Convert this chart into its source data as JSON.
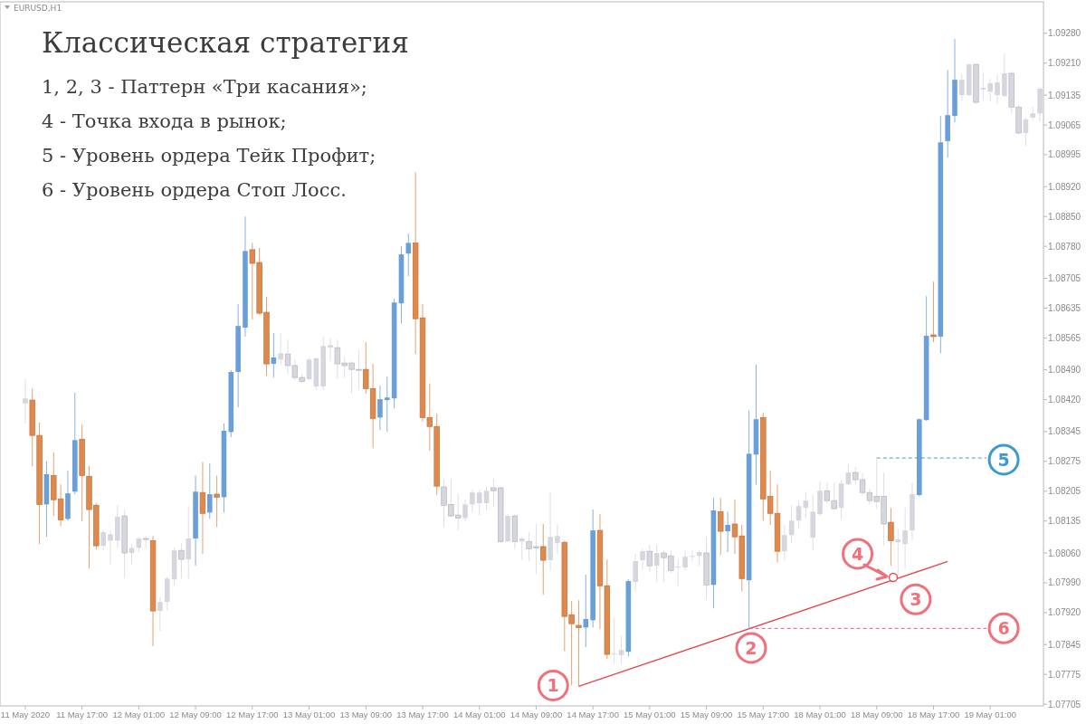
{
  "chart_data": {
    "type": "candlestick",
    "title": "Классическая стратегия",
    "annotations": [
      "EURUSD,H1",
      "1, 2, 3 - Паттерн «Три касания»;",
      "4 - Точка входа в рынок;",
      "5 - Уровень ордера Тейк Профит;",
      "6 - Уровень ордера Стоп Лосс.",
      {
        "text": "1",
        "y": 1.07749
      },
      {
        "text": "2",
        "y": 1.07837
      },
      {
        "text": "3",
        "y": 1.07951
      },
      {
        "text": "4",
        "y": 1.08058
      },
      {
        "text": "5",
        "y": 1.08279
      },
      {
        "text": "6",
        "y": 1.07883
      }
    ],
    "categories": [
      "11 May 2020",
      null,
      null,
      null,
      null,
      null,
      null,
      null,
      "11 May 17:00",
      null,
      null,
      null,
      null,
      null,
      null,
      null,
      "12 May 01:00",
      null,
      null,
      null,
      null,
      null,
      null,
      null,
      "12 May 09:00",
      null,
      null,
      null,
      null,
      null,
      null,
      null,
      "12 May 17:00",
      null,
      null,
      null,
      null,
      null,
      null,
      null,
      "13 May 01:00",
      null,
      null,
      null,
      null,
      null,
      null,
      null,
      "13 May 09:00",
      null,
      null,
      null,
      null,
      null,
      null,
      null,
      "13 May 17:00",
      null,
      null,
      null,
      null,
      null,
      null,
      null,
      "14 May 01:00",
      null,
      null,
      null,
      null,
      null,
      null,
      null,
      "14 May 09:00",
      null,
      null,
      null,
      null,
      null,
      null,
      null,
      "14 May 17:00",
      null,
      null,
      null,
      null,
      null,
      null,
      null,
      "15 May 01:00",
      null,
      null,
      null,
      null,
      null,
      null,
      null,
      "15 May 09:00",
      null,
      null,
      null,
      null,
      null,
      null,
      null,
      "15 May 17:00",
      null,
      null,
      null,
      null,
      null,
      null,
      null,
      "18 May 01:00",
      null,
      null,
      null,
      null,
      null,
      null,
      null,
      "18 May 09:00",
      null,
      null,
      null,
      null,
      null,
      null,
      null,
      "18 May 17:00",
      null,
      null,
      null,
      null,
      null,
      null,
      null,
      "19 May 01:00",
      null,
      null,
      null,
      null,
      null,
      null,
      null
    ],
    "ohlc": [
      [
        1.08411,
        1.08468,
        1.08364,
        1.08423
      ],
      [
        1.08419,
        1.08446,
        1.08264,
        1.08336
      ],
      [
        1.08336,
        1.08366,
        1.08081,
        1.08174
      ],
      [
        1.08174,
        1.08276,
        1.08098,
        1.08245
      ],
      [
        1.08242,
        1.08296,
        1.08147,
        1.08185
      ],
      [
        1.08187,
        1.08221,
        1.08123,
        1.08138
      ],
      [
        1.0814,
        1.08253,
        1.08136,
        1.082
      ],
      [
        1.08204,
        1.08436,
        1.08198,
        1.08325
      ],
      [
        1.08327,
        1.08361,
        1.08134,
        1.08242
      ],
      [
        1.0824,
        1.08264,
        1.08024,
        1.08162
      ],
      [
        1.08172,
        1.08177,
        1.08068,
        1.08077
      ],
      [
        1.08077,
        1.08115,
        1.08066,
        1.08109
      ],
      [
        1.08089,
        1.08113,
        1.08034,
        1.08104
      ],
      [
        1.08089,
        1.08172,
        1.08072,
        1.08145
      ],
      [
        1.08147,
        1.08162,
        1.08002,
        1.0806
      ],
      [
        1.0806,
        1.08081,
        1.08034,
        1.08072
      ],
      [
        1.08072,
        1.08098,
        1.08062,
        1.08094
      ],
      [
        1.08094,
        1.081,
        1.08072,
        1.08092
      ],
      [
        1.08089,
        1.081,
        1.07841,
        1.07924
      ],
      [
        1.07924,
        1.07956,
        1.07877,
        1.07945
      ],
      [
        1.07945,
        1.08004,
        1.07926,
        1.08
      ],
      [
        1.07998,
        1.08072,
        1.07983,
        1.08066
      ],
      [
        1.08066,
        1.08083,
        1.08,
        1.08045
      ],
      [
        1.08045,
        1.0817,
        1.08,
        1.08094
      ],
      [
        1.08094,
        1.08242,
        1.0803,
        1.08204
      ],
      [
        1.08202,
        1.08274,
        1.08058,
        1.08153
      ],
      [
        1.08155,
        1.0827,
        1.0814,
        1.08198
      ],
      [
        1.08198,
        1.08242,
        1.08121,
        1.08191
      ],
      [
        1.08191,
        1.08364,
        1.08155,
        1.08347
      ],
      [
        1.08344,
        1.08489,
        1.08332,
        1.08485
      ],
      [
        1.08485,
        1.08644,
        1.08402,
        1.08593
      ],
      [
        1.08589,
        1.0885,
        1.08568,
        1.08769
      ],
      [
        1.08772,
        1.08788,
        1.08608,
        1.0874
      ],
      [
        1.08742,
        1.08776,
        1.08619,
        1.08623
      ],
      [
        1.08625,
        1.08661,
        1.08476,
        1.08504
      ],
      [
        1.08504,
        1.08576,
        1.08472,
        1.08519
      ],
      [
        1.08514,
        1.08576,
        1.08502,
        1.08529
      ],
      [
        1.08527,
        1.08561,
        1.0848,
        1.085
      ],
      [
        1.085,
        1.08514,
        1.08466,
        1.08472
      ],
      [
        1.08472,
        1.0848,
        1.08459,
        1.08463
      ],
      [
        1.08468,
        1.08517,
        1.08466,
        1.08514
      ],
      [
        1.08451,
        1.08519,
        1.08442,
        1.08517
      ],
      [
        1.08451,
        1.08568,
        1.08442,
        1.08546
      ],
      [
        1.08542,
        1.08565,
        1.0851,
        1.08548
      ],
      [
        1.08542,
        1.08561,
        1.08468,
        1.08504
      ],
      [
        1.08506,
        1.08519,
        1.08472,
        1.085
      ],
      [
        1.08506,
        1.0851,
        1.08434,
        1.08491
      ],
      [
        1.08491,
        1.08536,
        1.08444,
        1.08489
      ],
      [
        1.08491,
        1.08555,
        1.08434,
        1.08446
      ],
      [
        1.08446,
        1.08504,
        1.08306,
        1.08376
      ],
      [
        1.08378,
        1.08453,
        1.08349,
        1.08421
      ],
      [
        1.08419,
        1.08474,
        1.08344,
        1.08425
      ],
      [
        1.08423,
        1.08657,
        1.084,
        1.08648
      ],
      [
        1.08646,
        1.0878,
        1.08599,
        1.08761
      ],
      [
        1.08763,
        1.0881,
        1.0871,
        1.08788
      ],
      [
        1.08788,
        1.08954,
        1.08527,
        1.0861
      ],
      [
        1.08612,
        1.08644,
        1.08368,
        1.08378
      ],
      [
        1.08378,
        1.08457,
        1.083,
        1.08357
      ],
      [
        1.08357,
        1.08387,
        1.08196,
        1.08217
      ],
      [
        1.08215,
        1.08232,
        1.08121,
        1.08172
      ],
      [
        1.08174,
        1.08234,
        1.08145,
        1.08147
      ],
      [
        1.08149,
        1.082,
        1.08113,
        1.08142
      ],
      [
        1.08142,
        1.08185,
        1.08134,
        1.08174
      ],
      [
        1.08174,
        1.08208,
        1.08155,
        1.08202
      ],
      [
        1.08177,
        1.08208,
        1.08149,
        1.08202
      ],
      [
        1.08177,
        1.08217,
        1.0816,
        1.08206
      ],
      [
        1.08213,
        1.08234,
        1.08168,
        1.08206
      ],
      [
        1.08213,
        1.08216,
        1.08083,
        1.08087
      ],
      [
        1.08087,
        1.08151,
        1.08085,
        1.08147
      ],
      [
        1.08147,
        1.08151,
        1.08068,
        1.08087
      ],
      [
        1.08087,
        1.08098,
        1.08045,
        1.08094
      ],
      [
        1.08087,
        1.08109,
        1.08041,
        1.0807
      ],
      [
        1.08075,
        1.08128,
        1.08011,
        1.08072
      ],
      [
        1.08075,
        1.08128,
        1.07962,
        1.08043
      ],
      [
        1.08043,
        1.08202,
        1.08019,
        1.08098
      ],
      [
        1.08083,
        1.08128,
        1.08058,
        1.081
      ],
      [
        1.08085,
        1.08089,
        1.0783,
        1.07911
      ],
      [
        1.07915,
        1.07947,
        1.07749,
        1.07894
      ],
      [
        1.0789,
        1.07949,
        1.07747,
        1.07885
      ],
      [
        1.07885,
        1.08009,
        1.07839,
        1.07905
      ],
      [
        1.07902,
        1.08162,
        1.07885,
        1.08113
      ],
      [
        1.08113,
        1.08151,
        1.07881,
        1.07983
      ],
      [
        1.07983,
        1.08045,
        1.07811,
        1.07822
      ],
      [
        1.07822,
        1.07907,
        1.078,
        1.07824
      ],
      [
        1.0782,
        1.07866,
        1.078,
        1.07832
      ],
      [
        1.07828,
        1.07998,
        1.07817,
        1.07994
      ],
      [
        1.07992,
        1.08058,
        1.0797,
        1.08041
      ],
      [
        1.08043,
        1.0807,
        1.08019,
        1.08064
      ],
      [
        1.08064,
        1.08079,
        1.08015,
        1.0803
      ],
      [
        1.0803,
        1.08079,
        1.07992,
        1.0806
      ],
      [
        1.0806,
        1.08066,
        1.07992,
        1.08049
      ],
      [
        1.08053,
        1.08066,
        1.08013,
        1.08019
      ],
      [
        1.08026,
        1.08047,
        1.07983,
        1.08028
      ],
      [
        1.08026,
        1.08066,
        1.08019,
        1.08051
      ],
      [
        1.08051,
        1.08066,
        1.08041,
        1.08053
      ],
      [
        1.08053,
        1.08066,
        1.0803,
        1.08062
      ],
      [
        1.0806,
        1.08098,
        1.07951,
        1.07985
      ],
      [
        1.07985,
        1.08189,
        1.0793,
        1.0816
      ],
      [
        1.08157,
        1.08189,
        1.08055,
        1.08111
      ],
      [
        1.08111,
        1.08157,
        1.08062,
        1.08126
      ],
      [
        1.08128,
        1.08185,
        1.08058,
        1.08098
      ],
      [
        1.081,
        1.08126,
        1.0797,
        1.08
      ],
      [
        1.07996,
        1.08395,
        1.07883,
        1.08293
      ],
      [
        1.08291,
        1.08502,
        1.08221,
        1.08374
      ],
      [
        1.08378,
        1.08389,
        1.08136,
        1.08187
      ],
      [
        1.08193,
        1.08253,
        1.08126,
        1.08153
      ],
      [
        1.08153,
        1.08221,
        1.08038,
        1.08064
      ],
      [
        1.08064,
        1.08126,
        1.08043,
        1.08102
      ],
      [
        1.08102,
        1.08172,
        1.08083,
        1.08136
      ],
      [
        1.08136,
        1.08183,
        1.08117,
        1.0817
      ],
      [
        1.08166,
        1.08204,
        1.08142,
        1.08183
      ],
      [
        1.08096,
        1.08196,
        1.08066,
        1.08157
      ],
      [
        1.08151,
        1.08228,
        1.08147,
        1.08206
      ],
      [
        1.08206,
        1.08225,
        1.08177,
        1.08183
      ],
      [
        1.08183,
        1.08225,
        1.08162,
        1.08164
      ],
      [
        1.08166,
        1.08232,
        1.0814,
        1.08223
      ],
      [
        1.08221,
        1.08268,
        1.08219,
        1.08249
      ],
      [
        1.08249,
        1.08262,
        1.08221,
        1.08232
      ],
      [
        1.08232,
        1.08247,
        1.08196,
        1.08202
      ],
      [
        1.08202,
        1.08211,
        1.08174,
        1.08183
      ],
      [
        1.08193,
        1.08283,
        1.08164,
        1.08181
      ],
      [
        1.08193,
        1.08249,
        1.08077,
        1.08128
      ],
      [
        1.08132,
        1.08166,
        1.0803,
        1.08089
      ],
      [
        1.08085,
        1.08117,
        1.08002,
        1.08092
      ],
      [
        1.08081,
        1.08166,
        1.08024,
        1.08113
      ],
      [
        1.08113,
        1.08225,
        1.08089,
        1.08198
      ],
      [
        1.08196,
        1.08376,
        1.08193,
        1.08374
      ],
      [
        1.08372,
        1.08663,
        1.0837,
        1.0857
      ],
      [
        1.08572,
        1.08697,
        1.08555,
        1.08568
      ],
      [
        1.08568,
        1.09086,
        1.08529,
        1.09024
      ],
      [
        1.09027,
        1.09194,
        1.08988,
        1.09088
      ],
      [
        1.09086,
        1.09267,
        1.09071,
        1.09171
      ],
      [
        1.09135,
        1.09184,
        1.09122,
        1.09171
      ],
      [
        1.09135,
        1.09209,
        1.09133,
        1.09207
      ],
      [
        1.09207,
        1.09209,
        1.09114,
        1.09118
      ],
      [
        1.09148,
        1.09186,
        1.09124,
        1.09152
      ],
      [
        1.09143,
        1.09173,
        1.0912,
        1.09163
      ],
      [
        1.09135,
        1.09184,
        1.09114,
        1.09165
      ],
      [
        1.09133,
        1.09233,
        1.09131,
        1.09186
      ],
      [
        1.09186,
        1.0919,
        1.09092,
        1.09107
      ],
      [
        1.09107,
        1.09112,
        1.09041,
        1.09046
      ],
      [
        1.09046,
        1.09082,
        1.09016,
        1.09078
      ],
      [
        1.09082,
        1.09109,
        1.09075,
        1.09092
      ],
      [
        1.09092,
        1.09154,
        1.09073,
        1.0915
      ]
    ],
    "colors": [
      "#d6d7de",
      "#e0894d",
      "#e0894d",
      "#6b9fd8",
      "#e0894d",
      "#e0894d",
      "#6b9fd8",
      "#6b9fd8",
      "#e0894d",
      "#e0894d",
      "#e0894d",
      "#d6d7de",
      "#d6d7de",
      "#d6d7de",
      "#d6d7de",
      "#d6d7de",
      "#d6d7de",
      "#d6d7de",
      "#e0894d",
      "#d6d7de",
      "#d6d7de",
      "#d6d7de",
      "#d6d7de",
      "#d6d7de",
      "#6b9fd8",
      "#e0894d",
      "#6b9fd8",
      "#e0894d",
      "#6b9fd8",
      "#6b9fd8",
      "#6b9fd8",
      "#6b9fd8",
      "#e0894d",
      "#e0894d",
      "#e0894d",
      "#6b9fd8",
      "#d6d7de",
      "#d6d7de",
      "#d6d7de",
      "#d6d7de",
      "#d6d7de",
      "#d6d7de",
      "#d6d7de",
      "#d6d7de",
      "#d6d7de",
      "#d6d7de",
      "#d6d7de",
      "#d6d7de",
      "#e0894d",
      "#e0894d",
      "#6b9fd8",
      "#6b9fd8",
      "#6b9fd8",
      "#6b9fd8",
      "#6b9fd8",
      "#e0894d",
      "#e0894d",
      "#e0894d",
      "#e0894d",
      "#d6d7de",
      "#d6d7de",
      "#d6d7de",
      "#d6d7de",
      "#d6d7de",
      "#d6d7de",
      "#d6d7de",
      "#d6d7de",
      "#d6d7de",
      "#d6d7de",
      "#d6d7de",
      "#d6d7de",
      "#d6d7de",
      "#d6d7de",
      "#e0894d",
      "#d6d7de",
      "#d6d7de",
      "#e0894d",
      "#e0894d",
      "#e0894d",
      "#6b9fd8",
      "#6b9fd8",
      "#e0894d",
      "#e0894d",
      "#d6d7de",
      "#d6d7de",
      "#6b9fd8",
      "#d6d7de",
      "#d6d7de",
      "#d6d7de",
      "#d6d7de",
      "#d6d7de",
      "#d6d7de",
      "#d6d7de",
      "#d6d7de",
      "#d6d7de",
      "#d6d7de",
      "#d6d7de",
      "#6b9fd8",
      "#e0894d",
      "#6b9fd8",
      "#e0894d",
      "#e0894d",
      "#6b9fd8",
      "#6b9fd8",
      "#e0894d",
      "#e0894d",
      "#e0894d",
      "#d6d7de",
      "#d6d7de",
      "#d6d7de",
      "#d6d7de",
      "#d6d7de",
      "#d6d7de",
      "#d6d7de",
      "#d6d7de",
      "#d6d7de",
      "#d6d7de",
      "#d6d7de",
      "#d6d7de",
      "#d6d7de",
      "#d6d7de",
      "#d6d7de",
      "#e0894d",
      "#d6d7de",
      "#d6d7de",
      "#d6d7de",
      "#6b9fd8",
      "#6b9fd8",
      "#e0894d",
      "#6b9fd8",
      "#6b9fd8",
      "#6b9fd8",
      "#d6d7de",
      "#d6d7de",
      "#d6d7de",
      "#d6d7de",
      "#d6d7de",
      "#d6d7de",
      "#d6d7de",
      "#d6d7de",
      "#d6d7de",
      "#d6d7de",
      "#d6d7de",
      "#d6d7de"
    ],
    "series": [
      {
        "type": "line",
        "color": "#e5484d",
        "values": [
          null,
          null,
          null,
          null,
          null,
          null,
          null,
          null,
          null,
          null,
          null,
          null,
          null,
          null,
          null,
          null,
          null,
          null,
          null,
          null,
          null,
          null,
          null,
          null,
          null,
          null,
          null,
          null,
          null,
          null,
          null,
          null,
          null,
          null,
          null,
          null,
          null,
          null,
          null,
          null,
          null,
          null,
          null,
          null,
          null,
          null,
          null,
          null,
          null,
          null,
          null,
          null,
          null,
          null,
          null,
          null,
          null,
          null,
          null,
          null,
          null,
          null,
          null,
          null,
          null,
          null,
          null,
          null,
          null,
          null,
          null,
          null,
          null,
          null,
          null,
          null,
          null,
          null,
          1.07747,
          null,
          null,
          null,
          null,
          null,
          null,
          null,
          null,
          null,
          null,
          null,
          null,
          null,
          null,
          null,
          null,
          null,
          null,
          null,
          null,
          null,
          null,
          null,
          null,
          null,
          null,
          null,
          null,
          null,
          null,
          null,
          null,
          null,
          null,
          null,
          null,
          null,
          null,
          null,
          null,
          null,
          null,
          null,
          null,
          null,
          null,
          null,
          null,
          null,
          null,
          null,
          1.0804,
          null,
          null,
          null,
          null,
          null,
          null,
          null,
          null,
          null,
          null,
          null,
          null,
          null
        ]
      }
    ],
    "ref_lines": [
      {
        "axis": "y",
        "value": 1.08283,
        "color": "#4a9bc0",
        "line_style": "dashed"
      },
      {
        "axis": "y",
        "value": 1.07883,
        "color": "#e0606e",
        "line_style": "dashed"
      }
    ],
    "ylim": [
      1.07701,
      1.09354
    ],
    "yticks": [
      1.07705,
      1.07775,
      1.07845,
      {
        "value": 1.0792,
        "label": "1.07920"
      },
      {
        "value": 1.0799,
        "label": "1.07990"
      },
      {
        "value": 1.0806,
        "label": "1.08060"
      },
      1.08135,
      1.08205,
      1.08275,
      1.08345,
      {
        "value": 1.0842,
        "label": "1.08420"
      },
      {
        "value": 1.0849,
        "label": "1.08490"
      },
      1.08565,
      1.08635,
      1.08705,
      {
        "value": 1.0878,
        "label": "1.08780"
      },
      {
        "value": 1.0885,
        "label": "1.08850"
      },
      {
        "value": 1.0892,
        "label": "1.08920"
      },
      1.08995,
      1.09065,
      1.09135,
      {
        "value": 1.0921,
        "label": "1.09210"
      },
      {
        "value": 1.0928,
        "label": "1.09280"
      }
    ]
  }
}
